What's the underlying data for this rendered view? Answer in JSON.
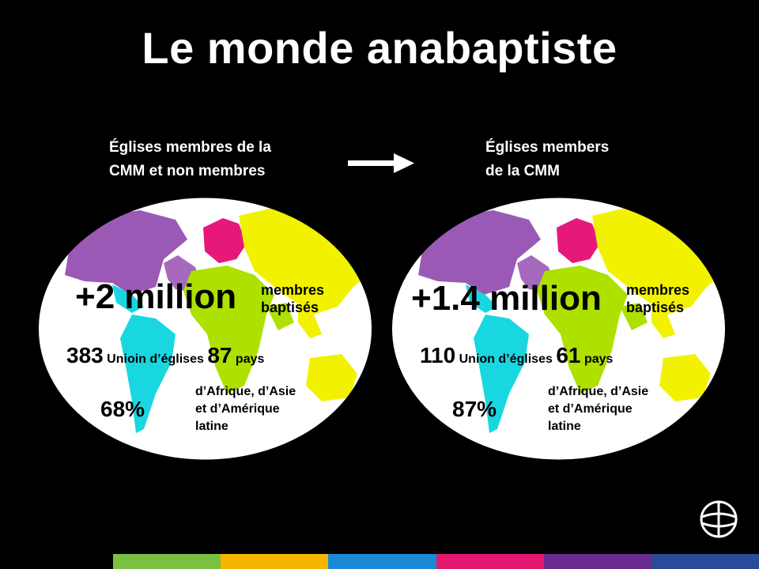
{
  "title": "Le monde anabaptiste",
  "left": {
    "label_line1": "Églises membres de la",
    "label_line2": "CMM et non membres",
    "members_value": "+2 million",
    "members_unit_line1": "membres",
    "members_unit_line2": "baptisés",
    "unions_count": "383",
    "unions_label": "Unioin d’églises",
    "countries_count": "87",
    "countries_label": "pays",
    "percent": "68%",
    "region_line1": "d’Afrique, d’Asie",
    "region_line2": "et d’Amérique",
    "region_line3": "latine"
  },
  "right": {
    "label_line1": "Églises members",
    "label_line2": "de la CMM",
    "members_value": "+1.4 million",
    "members_unit_line1": "membres",
    "members_unit_line2": "baptisés",
    "unions_count": "110",
    "unions_label": "Union d’églises",
    "countries_count": "61",
    "countries_label": "pays",
    "percent": "87%",
    "region_line1": "d’Afrique, d’Asie",
    "region_line2": "et d’Amérique",
    "region_line3": "latine"
  },
  "colors": {
    "north_america": "#9b59b6",
    "europe": "#e6197a",
    "asia": "#f2f200",
    "africa": "#aee000",
    "latin_america": "#18d7e0",
    "bar": [
      "#7ac142",
      "#f7b500",
      "#1a8ad4",
      "#e2196e",
      "#6a2a8f",
      "#2a4b9a"
    ]
  }
}
